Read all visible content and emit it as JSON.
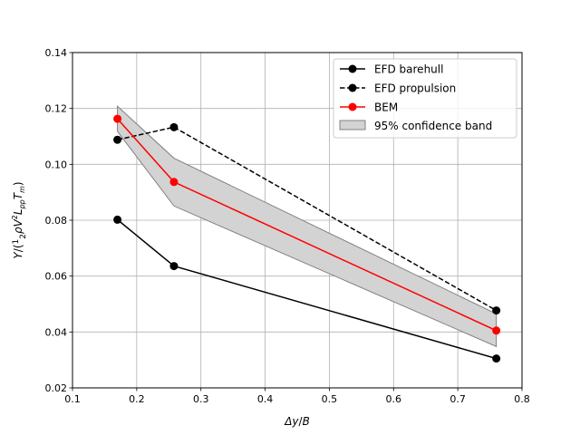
{
  "chart_data": {
    "type": "line",
    "xlabel": "Δy/B",
    "ylabel": "Y/(½ρV²L_pp T_m)",
    "xlim": [
      0.1,
      0.8
    ],
    "ylim": [
      0.02,
      0.14
    ],
    "xticks": [
      0.1,
      0.2,
      0.3,
      0.4,
      0.5,
      0.6,
      0.7,
      0.8
    ],
    "yticks": [
      0.02,
      0.04,
      0.06,
      0.08,
      0.1,
      0.12,
      0.14
    ],
    "xtick_labels": [
      "0.1",
      "0.2",
      "0.3",
      "0.4",
      "0.5",
      "0.6",
      "0.7",
      "0.8"
    ],
    "ytick_labels": [
      "0.02",
      "0.04",
      "0.06",
      "0.08",
      "0.10",
      "0.12",
      "0.14"
    ],
    "grid": true,
    "legend_position": "top-right",
    "series": [
      {
        "name": "EFD barehull",
        "x": [
          0.17,
          0.258,
          0.76
        ],
        "y": [
          0.0802,
          0.0636,
          0.0305
        ],
        "color": "#000000",
        "style": "solid",
        "marker": "circle"
      },
      {
        "name": "EFD propulsion",
        "x": [
          0.17,
          0.258,
          0.76
        ],
        "y": [
          0.1088,
          0.1133,
          0.0477
        ],
        "color": "#000000",
        "style": "dashed",
        "marker": "circle"
      },
      {
        "name": "BEM",
        "x": [
          0.17,
          0.258,
          0.76
        ],
        "y": [
          0.1163,
          0.0937,
          0.0405
        ],
        "color": "#ff0000",
        "style": "solid",
        "marker": "circle"
      }
    ],
    "band": {
      "name": "95% confidence band",
      "x": [
        0.17,
        0.258,
        0.76
      ],
      "upper": [
        0.1208,
        0.1022,
        0.0465
      ],
      "lower": [
        0.1118,
        0.0851,
        0.0348
      ],
      "fill": "#d3d3d3",
      "edge": "#808080"
    }
  }
}
